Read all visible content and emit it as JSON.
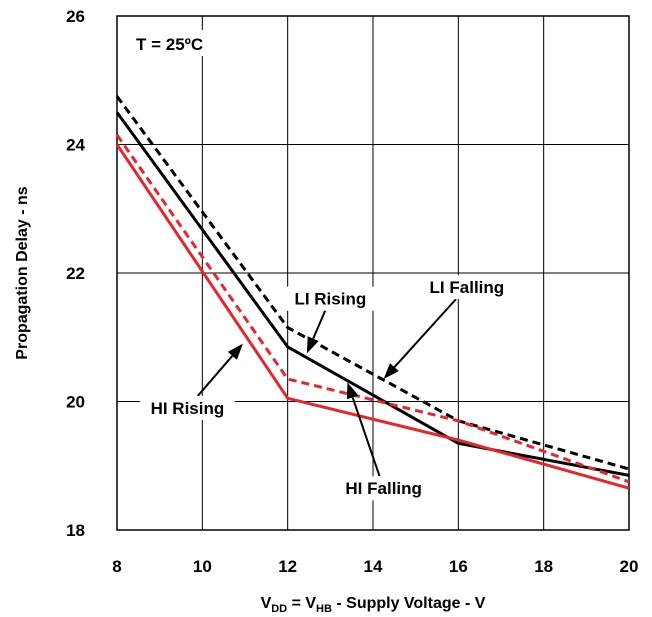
{
  "chart_data": {
    "type": "line",
    "title": "",
    "xlabel": {
      "prefix": "V",
      "sub1": "DD",
      "mid": " = V",
      "sub2": "HB",
      "suffix": " - Supply Voltage - V"
    },
    "ylabel": "Propagation Delay - ns",
    "xlim": [
      8,
      20
    ],
    "ylim": [
      18,
      26
    ],
    "xticks": [
      8,
      10,
      12,
      14,
      16,
      18,
      20
    ],
    "yticks": [
      18,
      20,
      22,
      24,
      26
    ],
    "grid": true,
    "condition_label": "T = 25ºC",
    "series": [
      {
        "name": "LI Falling",
        "color": "#000000",
        "dash": true,
        "x": [
          8,
          12,
          16,
          20
        ],
        "y": [
          24.75,
          21.15,
          19.7,
          18.95
        ]
      },
      {
        "name": "LI Rising",
        "color": "#000000",
        "dash": false,
        "x": [
          8,
          12,
          16,
          20
        ],
        "y": [
          24.5,
          20.85,
          19.35,
          18.85
        ]
      },
      {
        "name": "HI Falling",
        "color": "#e8242c",
        "dash": true,
        "x": [
          8,
          12,
          16,
          20
        ],
        "y": [
          24.15,
          20.35,
          19.7,
          18.75
        ]
      },
      {
        "name": "HI Rising",
        "color": "#e8242c",
        "dash": false,
        "x": [
          8,
          12,
          16,
          20
        ],
        "y": [
          24.0,
          20.05,
          19.4,
          18.65
        ]
      }
    ],
    "annotations": [
      {
        "text": "LI Falling",
        "tx": 14.25,
        "ty": 20.35,
        "lx": 16.2,
        "ly": 21.78
      },
      {
        "text": "LI Rising",
        "tx": 12.45,
        "ty": 20.75,
        "lx": 13.0,
        "ly": 21.6
      },
      {
        "text": "HI Rising",
        "tx": 10.95,
        "ty": 20.9,
        "lx": 9.65,
        "ly": 19.9
      },
      {
        "text": "HI Falling",
        "tx": 13.4,
        "ty": 20.3,
        "lx": 14.25,
        "ly": 18.65
      }
    ]
  }
}
